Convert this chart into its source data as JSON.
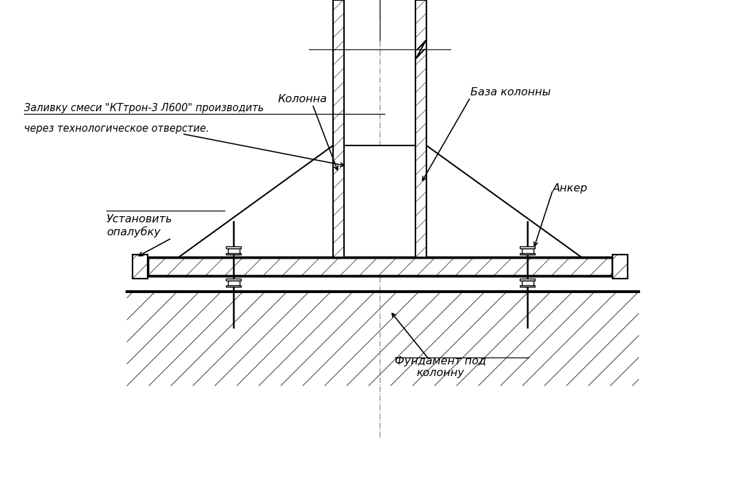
{
  "bg_color": "#ffffff",
  "line_color": "#000000",
  "fig_width": 10.66,
  "fig_height": 7.17,
  "labels": {
    "kolonna": "Колонна",
    "baza": "База колонны",
    "anker": "Анкер",
    "ustanovit": "Установить\nопалубку",
    "zalivku_line1": "Заливку смеси \"КТтрон-3 Л600\" производить",
    "zalivku_line2": "через технологическое отверстие.",
    "fundament_line1": "Фундамент под",
    "fundament_line2": "колонну"
  }
}
